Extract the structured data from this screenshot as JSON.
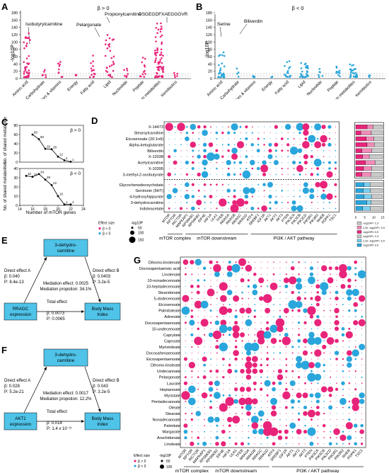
{
  "colors": {
    "pos": "#e8247a",
    "neg": "#2aa6dc",
    "dash": "#999999",
    "grid": "#cfcfcf"
  },
  "panelA": {
    "letter": "A",
    "ylabel": "-log10P",
    "yticks": [
      "0",
      "20",
      "40",
      "60",
      "80",
      "100",
      "120",
      "140",
      "160",
      "180"
    ],
    "condition": "β > 0",
    "annotations": [
      "Isobutyrylcarnitine",
      "Pelargonate",
      "Propionylcarnitine",
      "DSGEGDFXAEGGGVR"
    ],
    "categories": [
      "Amino acid",
      "Carbohydrate",
      "Cofactors & vitamins",
      "Energy",
      "Fatty acid",
      "Lipid",
      "Nucleotide",
      "Peptide",
      "Unknown metabolites",
      "Xenobiotics"
    ]
  },
  "panelB": {
    "letter": "B",
    "ylabel": "-log10P",
    "yticks": [
      "0",
      "20",
      "40",
      "60",
      "80",
      "100",
      "120",
      "140",
      "160",
      "180"
    ],
    "condition": "β < 0",
    "annotations": [
      "Serine",
      "Biliverdin"
    ],
    "categories": [
      "Amino acid",
      "Carbohydrate",
      "Cofactors & vitamins",
      "Energy",
      "Fatty acid",
      "Lipid",
      "Nucleotide",
      "Peptide",
      "Unknown metabolites",
      "Xenobiotics"
    ]
  },
  "panelC": {
    "letter": "C",
    "ylabel": "No. of shared metabolites",
    "xlabel": "Number of mTOR genes",
    "xticks": [
      "14",
      "16",
      "18",
      "20",
      "22",
      "24"
    ],
    "top": {
      "condition": "β > 0",
      "yticks": [
        "0",
        "20",
        "40",
        "60",
        "80"
      ],
      "points": [
        {
          "x": 16,
          "y": 60
        },
        {
          "x": 17,
          "y": 50
        },
        {
          "x": 18,
          "y": 29
        },
        {
          "x": 19,
          "y": 28
        },
        {
          "x": 20,
          "y": 12
        },
        {
          "x": 21,
          "y": 4
        },
        {
          "x": 22,
          "y": 1
        }
      ],
      "labels": [
        "60",
        "50",
        "29",
        "28",
        "12",
        "4",
        "1"
      ]
    },
    "bottom": {
      "condition": "β < 0",
      "yticks": [
        "0",
        "10",
        "20",
        "30",
        "40"
      ],
      "points": [
        {
          "x": 15,
          "y": 32
        },
        {
          "x": 16,
          "y": 31
        },
        {
          "x": 17,
          "y": 34
        },
        {
          "x": 18,
          "y": 28
        },
        {
          "x": 19,
          "y": 22
        },
        {
          "x": 20,
          "y": 10
        },
        {
          "x": 21,
          "y": 1
        },
        {
          "x": 22,
          "y": 1
        }
      ],
      "labels": [
        "32",
        "31",
        "34",
        "28",
        "22",
        "10",
        "1",
        "1"
      ]
    }
  },
  "panelD": {
    "letter": "D",
    "rows_top": [
      "X-14473",
      "Stearoylcarnitine",
      "Eicosenoate (20:1n9)",
      "Alpha-ketoglutarate",
      "Biliverdin",
      "X-12038",
      "Acetylcarnitine",
      "X-10395",
      "3-methyl-2-oxobutyrate"
    ],
    "rows_bottom": [
      "Glycochenodeoxycholate",
      "Serotonin (5HT)",
      "4-hydroxyhippurate",
      "3-dehydrocarnitine",
      "Indoleacetate"
    ],
    "genes": [
      "MTOR",
      "RPTOR",
      "RICTOR",
      "MAPKAP1",
      "RPS6KB1",
      "RPS6KB2",
      "EIF4E",
      "HIF1A",
      "ULK1",
      "TFEB",
      "RRAGA",
      "RRAGB",
      "RRAGC",
      "RRAGD",
      "ATF4",
      "SREBF1",
      "IGF1R",
      "AKT1",
      "AKT2",
      "AKT3",
      "PTEN",
      "PIK3CA",
      "PIK3CB",
      "PIK3CD",
      "PIK3R1",
      "PIK3R2",
      "RHEB",
      "PDPK1",
      "TSC1"
    ],
    "groups": [
      "mTOR complex",
      "mTOR downstream",
      "PI3K / AKT pathway"
    ],
    "legend_title": "Effect size",
    "legend_size_title": "-log10P",
    "legend_items": [
      "β > 0",
      "β < 0"
    ],
    "legend_sizes": [
      "50",
      "100",
      "150"
    ],
    "bar_axis": [
      "0",
      "5",
      "10",
      "15"
    ],
    "bar_legend": [
      "-log10P< 1.3",
      "1.3≤ -log10P< 3.9",
      "-log10P≥ 3.9",
      "-log10P< 1.3",
      "1.3≤ -log10P< 3.9",
      "-log10P≥ 3.9"
    ]
  },
  "panelE": {
    "letter": "E",
    "mediator": "3-dehydro-carnitine",
    "exposure": "RRAGC expression",
    "outcome": "Body Mass Index",
    "effectA": [
      "Direct effect A",
      "β: 0.040",
      "P: 8.4e-13"
    ],
    "effectB": [
      "Direct effect B",
      "β: 0.0403",
      "P: 3.2e-5"
    ],
    "mediation": [
      "Mediation effect: 0.0025",
      "Mediation propotion: 34.1%"
    ],
    "total": [
      "Total effect",
      "β: 0.0073",
      "P: 0.0065"
    ]
  },
  "panelF": {
    "letter": "F",
    "mediator": "3-dehydro-carnitine",
    "exposure": "AKT1 expression",
    "outcome": "Body Mass Index",
    "effectA": [
      "Direct effect A",
      "β: 0.028",
      "P: 5.2e-21"
    ],
    "effectB": [
      "Direct effect B",
      "β: 0.043",
      "P: 3.2e-5"
    ],
    "mediation": [
      "Mediation effect: 0.0017",
      "Mediation propotion: 12.2%"
    ],
    "total": [
      "Total effect",
      "β: 0.014",
      "P: 1.4 x 10⁻²⁷"
    ]
  },
  "panelG": {
    "letter": "G",
    "rows": [
      "Dihomo-linolenate",
      "Docosapentaenoic acid",
      "Linolenate",
      "10-nonadecenoate",
      "10-heptadecenoate",
      "Steandonate",
      "5-dodecenoate",
      "Eicosenoate",
      "Palmitoleate",
      "Adrenate",
      "Docosapentaenoate",
      "10-undecenoate",
      "Caprylate",
      "Caproate",
      "Myristoleate",
      "Docosahexaenoate",
      "Eicosapentaenoate",
      "Dihomo-linoleate",
      "Undecanoate",
      "Pelargonate",
      "Laurate",
      "Heptanoate",
      "Myristate",
      "Pentadecanoate",
      "Oleate",
      "Stearate",
      "Nonadecanoate",
      "Palmitate",
      "Margarate",
      "Arachidonate",
      "Linoleate"
    ],
    "genes": [
      "MTOR",
      "RPTOR",
      "RICTOR",
      "MAPKAP1",
      "RPS6KB1",
      "RPS6KB2",
      "EIF4E",
      "HIF1A",
      "ULK1",
      "TFEB",
      "RRAGA",
      "RRAGB",
      "RRAGC",
      "RRAGD",
      "ATF4",
      "SREBF1",
      "IGF1R",
      "AKT1",
      "AKT2",
      "AKT3",
      "PTEN",
      "PIK3CA",
      "PIK3CB",
      "PIK3CD",
      "PIK3R1",
      "PIK3R2",
      "RHEB",
      "PDPK1",
      "TSC1"
    ],
    "groups": [
      "mTOR complex",
      "mTOR downstream",
      "PI3K / AKT pathway"
    ],
    "legend_title": "Effect size",
    "legend_size_title": "-log10P",
    "legend_items": [
      "β > 0",
      "β < 0"
    ],
    "legend_sizes": [
      "50",
      "100"
    ]
  }
}
